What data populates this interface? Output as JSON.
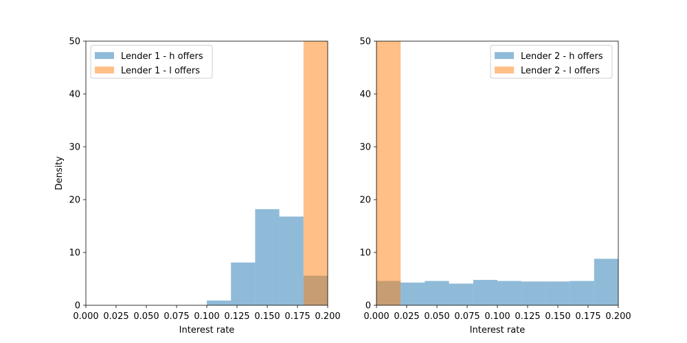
{
  "chart_data": [
    {
      "type": "histogram",
      "xlabel": "Interest rate",
      "ylabel": "Density",
      "xlim": [
        0.0,
        0.2
      ],
      "ylim": [
        0,
        50
      ],
      "xticks": [
        "0.000",
        "0.025",
        "0.050",
        "0.075",
        "0.100",
        "0.125",
        "0.150",
        "0.175",
        "0.200"
      ],
      "yticks": [
        "0",
        "10",
        "20",
        "30",
        "40",
        "50"
      ],
      "legend_position": "top-left",
      "series": [
        {
          "name": "Lender 1 - h offers",
          "color": "#1f77b4",
          "opacity": 0.5,
          "bins": [
            {
              "x0": 0.1,
              "x1": 0.12,
              "density": 0.9
            },
            {
              "x0": 0.12,
              "x1": 0.14,
              "density": 8.1
            },
            {
              "x0": 0.14,
              "x1": 0.16,
              "density": 18.2
            },
            {
              "x0": 0.16,
              "x1": 0.18,
              "density": 16.8
            },
            {
              "x0": 0.18,
              "x1": 0.2,
              "density": 5.6
            }
          ]
        },
        {
          "name": "Lender 1 - l offers",
          "color": "#ff7f0e",
          "opacity": 0.5,
          "bins": [
            {
              "x0": 0.18,
              "x1": 0.2,
              "density": 50
            }
          ]
        }
      ]
    },
    {
      "type": "histogram",
      "xlabel": "Interest rate",
      "ylabel": "",
      "xlim": [
        0.0,
        0.2
      ],
      "ylim": [
        0,
        50
      ],
      "xticks": [
        "0.000",
        "0.025",
        "0.050",
        "0.075",
        "0.100",
        "0.125",
        "0.150",
        "0.175",
        "0.200"
      ],
      "yticks": [
        "0",
        "10",
        "20",
        "30",
        "40",
        "50"
      ],
      "legend_position": "top-right",
      "series": [
        {
          "name": "Lender 2 - h offers",
          "color": "#1f77b4",
          "opacity": 0.5,
          "bins": [
            {
              "x0": 0.0,
              "x1": 0.02,
              "density": 4.6
            },
            {
              "x0": 0.02,
              "x1": 0.04,
              "density": 4.3
            },
            {
              "x0": 0.04,
              "x1": 0.06,
              "density": 4.6
            },
            {
              "x0": 0.06,
              "x1": 0.08,
              "density": 4.1
            },
            {
              "x0": 0.08,
              "x1": 0.1,
              "density": 4.8
            },
            {
              "x0": 0.1,
              "x1": 0.12,
              "density": 4.6
            },
            {
              "x0": 0.12,
              "x1": 0.14,
              "density": 4.5
            },
            {
              "x0": 0.14,
              "x1": 0.16,
              "density": 4.5
            },
            {
              "x0": 0.16,
              "x1": 0.18,
              "density": 4.6
            },
            {
              "x0": 0.18,
              "x1": 0.2,
              "density": 8.8
            }
          ]
        },
        {
          "name": "Lender 2 - l offers",
          "color": "#ff7f0e",
          "opacity": 0.5,
          "bins": [
            {
              "x0": 0.0,
              "x1": 0.02,
              "density": 50
            }
          ]
        }
      ]
    }
  ]
}
